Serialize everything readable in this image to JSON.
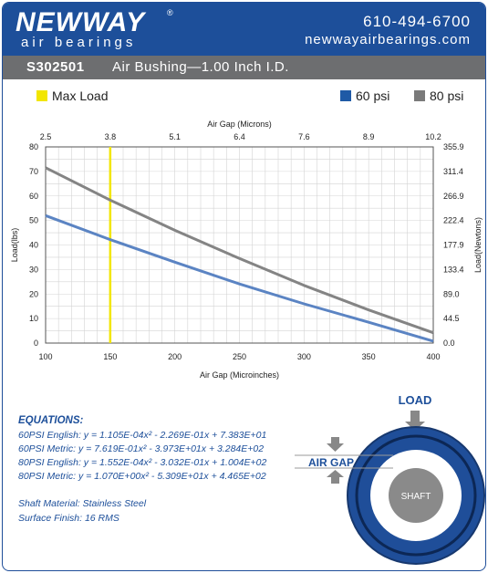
{
  "brand": {
    "logo_text": "NEWWAY",
    "registered": "®",
    "tagline": "air bearings",
    "phone": "610-494-6700",
    "website": "newwayairbearings.com"
  },
  "title": {
    "part_number": "S302501",
    "description": "Air Bushing—1.00 Inch I.D."
  },
  "legend": {
    "max_load": "Max Load",
    "psi60": "60 psi",
    "psi80": "80 psi"
  },
  "colors": {
    "header_blue": "#1d4f9a",
    "title_gray": "#6d6e70",
    "max_load": "#f2e600",
    "psi60": "#1f5aa6",
    "psi80": "#7a7a7a",
    "line60": "#5b84c3",
    "line80": "#848484"
  },
  "chart_data": {
    "type": "line",
    "title": "",
    "xlabel": "Air Gap (Microinches)",
    "xlabel_top": "Air Gap (Microns)",
    "ylabel": "Load(lbs)",
    "ylabel_right": "Load(Newtons)",
    "xlim": [
      100,
      400
    ],
    "ylim": [
      0,
      80
    ],
    "grid": true,
    "x_ticks": [
      100,
      150,
      200,
      250,
      300,
      350,
      400
    ],
    "y_ticks": [
      0,
      10,
      20,
      30,
      40,
      50,
      60,
      70,
      80
    ],
    "top_ticks": [
      "2.5",
      "3.8",
      "5.1",
      "6.4",
      "7.6",
      "8.9",
      "10.2"
    ],
    "right_ticks": [
      "0.0",
      "44.5",
      "89.0",
      "133.4",
      "177.9",
      "222.4",
      "266.9",
      "311.4",
      "355.9"
    ],
    "max_load_x": 150,
    "series": [
      {
        "name": "60 psi",
        "x": [
          100,
          150,
          200,
          250,
          300,
          350,
          400
        ],
        "y": [
          52.0,
          42.2,
          33.0,
          24.1,
          16.0,
          8.5,
          0.8
        ]
      },
      {
        "name": "80 psi",
        "x": [
          100,
          150,
          200,
          250,
          300,
          350,
          400
        ],
        "y": [
          71.5,
          58.3,
          46.0,
          34.5,
          23.5,
          13.5,
          4.2
        ]
      }
    ]
  },
  "equations": {
    "heading": "EQUATIONS:",
    "lines": [
      "60PSI English:  y = 1.105E-04x² - 2.269E-01x + 7.383E+01",
      "60PSI Metric:  y = 7.619E-01x² - 3.973E+01x + 3.284E+02",
      "80PSI English:  y = 1.552E-04x² - 3.032E-01x + 1.004E+02",
      "80PSI Metric:  y = 1.070E+00x² - 5.309E+01x + 4.465E+02"
    ]
  },
  "specs": {
    "shaft_material": "Shaft Material:  Stainless Steel",
    "surface_finish": "Surface Finish:  16 RMS"
  },
  "diagram": {
    "load_label": "LOAD",
    "air_gap_label": "AIR GAP",
    "shaft_label": "SHAFT"
  }
}
